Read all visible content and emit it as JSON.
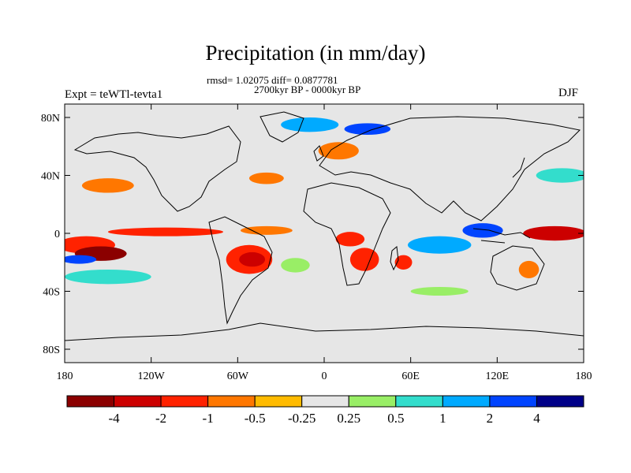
{
  "title": "Precipitation (in mm/day)",
  "stats_text": "rmsd= 1.02075 diff= 0.0877781",
  "period_text": "2700kyr BP - 0000kyr BP",
  "experiment_text": "Expt = teWTl-tevta1",
  "season": "DJF",
  "map": {
    "background_color": "#e6e6e6",
    "lat_ticks": [
      {
        "value": 80,
        "label": "80N"
      },
      {
        "value": 40,
        "label": "40N"
      },
      {
        "value": 0,
        "label": "0"
      },
      {
        "value": -40,
        "label": "40S"
      },
      {
        "value": -80,
        "label": "80S"
      }
    ],
    "lon_ticks": [
      {
        "value": -180,
        "label": "180"
      },
      {
        "value": -120,
        "label": "120W"
      },
      {
        "value": -60,
        "label": "60W"
      },
      {
        "value": 0,
        "label": "0"
      },
      {
        "value": 60,
        "label": "60E"
      },
      {
        "value": 120,
        "label": "120E"
      },
      {
        "value": 180,
        "label": "180"
      }
    ]
  },
  "colorbar": {
    "colors": [
      "#8b0000",
      "#cc0000",
      "#ff2200",
      "#ff7700",
      "#ffbb00",
      "#e6e6e6",
      "#99ee66",
      "#33ddcc",
      "#00aaff",
      "#0044ff",
      "#000088"
    ],
    "labels": [
      "-4",
      "-2",
      "-1",
      "-0.5",
      "-0.25",
      "0.25",
      "0.5",
      "1",
      "2",
      "4"
    ]
  },
  "anomaly_regions": [
    {
      "name": "central-pacific-dry-band",
      "lon": -165,
      "lat": -8,
      "rlon": 20,
      "rlat": 6,
      "color": "#ff2200"
    },
    {
      "name": "south-pacific-dry-core",
      "lon": -155,
      "lat": -14,
      "rlon": 18,
      "rlat": 5,
      "color": "#8b0000"
    },
    {
      "name": "north-pacific-dry",
      "lon": -150,
      "lat": 33,
      "rlon": 18,
      "rlat": 5,
      "color": "#ff7700"
    },
    {
      "name": "itcz-pacific-dry",
      "lon": -110,
      "lat": 1,
      "rlon": 40,
      "rlat": 3,
      "color": "#ff2200"
    },
    {
      "name": "amazon-dry",
      "lon": -52,
      "lat": -18,
      "rlon": 16,
      "rlat": 10,
      "color": "#ff2200"
    },
    {
      "name": "amazon-dry-core",
      "lon": -50,
      "lat": -18,
      "rlon": 9,
      "rlat": 5,
      "color": "#cc0000"
    },
    {
      "name": "atlantic-itcz-dry",
      "lon": -40,
      "lat": 2,
      "rlon": 18,
      "rlat": 3,
      "color": "#ff7700"
    },
    {
      "name": "africa-dry-west",
      "lon": 18,
      "lat": -4,
      "rlon": 10,
      "rlat": 5,
      "color": "#ff2200"
    },
    {
      "name": "southern-africa-dry",
      "lon": 28,
      "lat": -18,
      "rlon": 10,
      "rlat": 8,
      "color": "#ff2200"
    },
    {
      "name": "madagascar-dry",
      "lon": 55,
      "lat": -20,
      "rlon": 6,
      "rlat": 5,
      "color": "#ff2200"
    },
    {
      "name": "europe-dry",
      "lon": 10,
      "lat": 57,
      "rlon": 14,
      "rlat": 6,
      "color": "#ff7700"
    },
    {
      "name": "atlantic-north-dry",
      "lon": -40,
      "lat": 38,
      "rlon": 12,
      "rlat": 4,
      "color": "#ff7700"
    },
    {
      "name": "west-pacific-dry",
      "lon": 160,
      "lat": 0,
      "rlon": 22,
      "rlat": 5,
      "color": "#cc0000"
    },
    {
      "name": "australia-dry",
      "lon": 142,
      "lat": -25,
      "rlon": 7,
      "rlat": 6,
      "color": "#ff7700"
    },
    {
      "name": "south-pacific-wet",
      "lon": -150,
      "lat": -30,
      "rlon": 30,
      "rlat": 5,
      "color": "#33ddcc"
    },
    {
      "name": "central-pacific-wet",
      "lon": -170,
      "lat": -18,
      "rlon": 12,
      "rlat": 3,
      "color": "#0044ff"
    },
    {
      "name": "indian-ocean-wet",
      "lon": 80,
      "lat": -8,
      "rlon": 22,
      "rlat": 6,
      "color": "#00aaff"
    },
    {
      "name": "maritime-wet",
      "lon": 110,
      "lat": 2,
      "rlon": 14,
      "rlat": 5,
      "color": "#0044ff"
    },
    {
      "name": "north-atlantic-wet",
      "lon": -10,
      "lat": 75,
      "rlon": 20,
      "rlat": 5,
      "color": "#00aaff"
    },
    {
      "name": "arctic-wet",
      "lon": 30,
      "lat": 72,
      "rlon": 16,
      "rlat": 4,
      "color": "#0044ff"
    },
    {
      "name": "north-pacific-wet",
      "lon": 165,
      "lat": 40,
      "rlon": 18,
      "rlat": 5,
      "color": "#33ddcc"
    },
    {
      "name": "south-atlantic-wet",
      "lon": -20,
      "lat": -22,
      "rlon": 10,
      "rlat": 5,
      "color": "#99ee66"
    },
    {
      "name": "southern-ocean-wet",
      "lon": 80,
      "lat": -40,
      "rlon": 20,
      "rlat": 3,
      "color": "#99ee66"
    }
  ]
}
